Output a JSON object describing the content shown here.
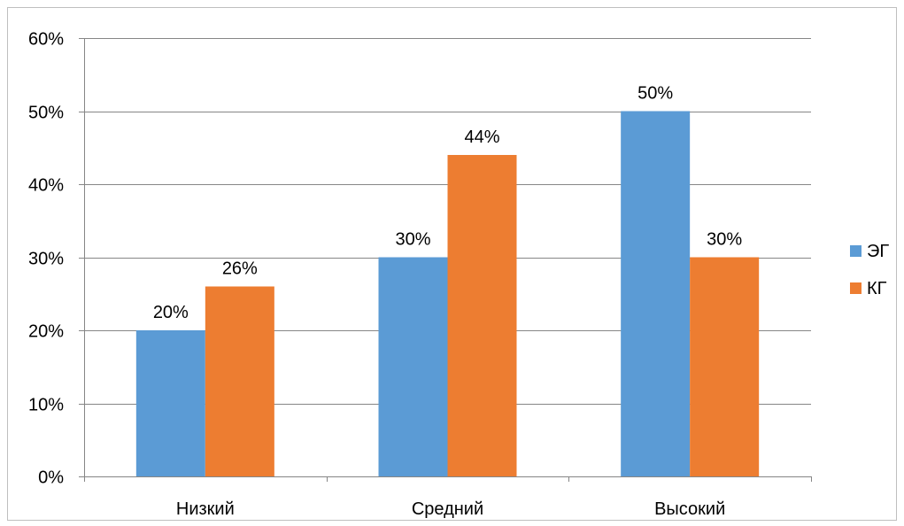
{
  "chart_data": {
    "type": "bar",
    "title": "",
    "xlabel": "",
    "ylabel": "",
    "categories": [
      "Низкий",
      "Средний",
      "Высокий"
    ],
    "series": [
      {
        "name": "ЭГ",
        "values": [
          20,
          30,
          50
        ],
        "labels": [
          "20%",
          "30%",
          "50%"
        ],
        "color": "#5b9bd5"
      },
      {
        "name": "КГ",
        "values": [
          26,
          44,
          30
        ],
        "labels": [
          "26%",
          "44%",
          "30%"
        ],
        "color": "#ed7d31"
      }
    ],
    "ylim": [
      0,
      60
    ],
    "yticks": [
      0,
      10,
      20,
      30,
      40,
      50,
      60
    ],
    "ytick_labels": [
      "0%",
      "10%",
      "20%",
      "30%",
      "40%",
      "50%",
      "60%"
    ],
    "grid": true,
    "gridline_color": "#868686",
    "legend_position": "right"
  }
}
